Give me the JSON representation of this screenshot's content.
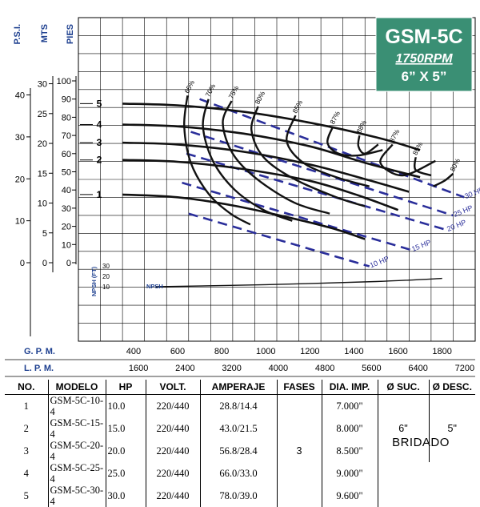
{
  "title_box": {
    "model": "GSM-5C",
    "rpm": "1750RPM",
    "size": "6” X 5”",
    "bg_color": "#3a8f74"
  },
  "chart_data": {
    "type": "line",
    "axes": {
      "psi": {
        "label": "P.S.I.",
        "ticks": [
          0,
          10,
          20,
          30,
          40
        ]
      },
      "mts": {
        "label": "MTS",
        "ticks": [
          0,
          5,
          10,
          15,
          20,
          25,
          30
        ]
      },
      "pies": {
        "label": "PIES",
        "ticks": [
          0,
          10,
          20,
          30,
          40,
          50,
          60,
          70,
          80,
          90,
          100
        ],
        "range": [
          0,
          100
        ]
      },
      "gpm": {
        "label": "G. P. M.",
        "ticks": [
          400,
          600,
          800,
          1000,
          1200,
          1400,
          1600,
          1800
        ],
        "range": [
          150,
          1950
        ]
      },
      "lpm": {
        "label": "L. P. M.",
        "ticks": [
          1600,
          2400,
          3200,
          4000,
          4800,
          5600,
          6400,
          7200
        ]
      }
    },
    "impeller_curves": [
      {
        "label": "5",
        "points": [
          [
            350,
            87.5
          ],
          [
            600,
            86.5
          ],
          [
            900,
            83
          ],
          [
            1200,
            77
          ],
          [
            1500,
            69
          ],
          [
            1700,
            62
          ]
        ]
      },
      {
        "label": "4",
        "points": [
          [
            350,
            76
          ],
          [
            600,
            75
          ],
          [
            900,
            71
          ],
          [
            1200,
            64
          ],
          [
            1450,
            55
          ],
          [
            1700,
            47
          ]
        ]
      },
      {
        "label": "3",
        "points": [
          [
            350,
            66
          ],
          [
            600,
            65
          ],
          [
            900,
            61
          ],
          [
            1200,
            54
          ],
          [
            1450,
            46
          ],
          [
            1650,
            39
          ]
        ]
      },
      {
        "label": "2",
        "points": [
          [
            350,
            56.5
          ],
          [
            600,
            55.5
          ],
          [
            900,
            51.5
          ],
          [
            1200,
            45
          ],
          [
            1420,
            37
          ],
          [
            1600,
            29
          ]
        ]
      },
      {
        "label": "1",
        "points": [
          [
            350,
            37.5
          ],
          [
            600,
            36
          ],
          [
            850,
            31.5
          ],
          [
            1100,
            25
          ],
          [
            1300,
            19
          ],
          [
            1450,
            13
          ]
        ]
      }
    ],
    "efficiency_curves": [
      {
        "label": "65%",
        "points": [
          [
            645,
            92
          ],
          [
            630,
            75
          ],
          [
            660,
            55
          ],
          [
            740,
            38
          ],
          [
            840,
            27
          ],
          [
            930,
            21
          ]
        ]
      },
      {
        "label": "70%",
        "points": [
          [
            740,
            90
          ],
          [
            715,
            75
          ],
          [
            760,
            56
          ],
          [
            860,
            40
          ],
          [
            990,
            29
          ],
          [
            1120,
            23
          ]
        ]
      },
      {
        "label": "75%",
        "points": [
          [
            845,
            89
          ],
          [
            805,
            77
          ],
          [
            850,
            60
          ],
          [
            960,
            46
          ],
          [
            1130,
            33
          ],
          [
            1290,
            27
          ]
        ]
      },
      {
        "label": "80%",
        "points": [
          [
            965,
            86
          ],
          [
            935,
            73
          ],
          [
            990,
            58
          ],
          [
            1130,
            46
          ],
          [
            1320,
            36
          ],
          [
            1450,
            31
          ]
        ]
      },
      {
        "label": "85%",
        "points": [
          [
            1135,
            81
          ],
          [
            1095,
            67
          ],
          [
            1170,
            55
          ],
          [
            1320,
            47
          ],
          [
            1470,
            42
          ]
        ]
      },
      {
        "label": "87%",
        "points": [
          [
            1305,
            75
          ],
          [
            1280,
            66
          ],
          [
            1330,
            60
          ],
          [
            1420,
            59
          ],
          [
            1530,
            62
          ]
        ]
      },
      {
        "label": "88%",
        "points": [
          [
            1425,
            70
          ],
          [
            1420,
            64
          ],
          [
            1450,
            60
          ],
          [
            1510,
            65
          ]
        ]
      },
      {
        "label": "87%",
        "points": [
          [
            1575,
            65
          ],
          [
            1520,
            55
          ],
          [
            1620,
            48
          ],
          [
            1770,
            56
          ]
        ]
      },
      {
        "label": "85%",
        "points": [
          [
            1680,
            58
          ],
          [
            1680,
            51
          ],
          [
            1750,
            48
          ]
        ]
      },
      {
        "label": "80%",
        "points": [
          [
            1850,
            49
          ],
          [
            1810,
            45
          ],
          [
            1760,
            42
          ]
        ]
      }
    ],
    "hp_lines": [
      {
        "label": "30 HP",
        "points": [
          [
            700,
            90
          ],
          [
            1900,
            36
          ]
        ]
      },
      {
        "label": "25 HP",
        "points": [
          [
            660,
            72
          ],
          [
            1850,
            26
          ]
        ]
      },
      {
        "label": "20 HP",
        "points": [
          [
            640,
            60
          ],
          [
            1820,
            18
          ]
        ]
      },
      {
        "label": "15 HP",
        "points": [
          [
            620,
            44
          ],
          [
            1660,
            7
          ]
        ]
      },
      {
        "label": "10 HP",
        "points": [
          [
            650,
            27
          ],
          [
            1470,
            -2
          ]
        ]
      }
    ],
    "npsh": {
      "label": "NPSH",
      "axis_label": "NPSH (FT)",
      "ticks": [
        10,
        20,
        30
      ],
      "points": [
        [
          500,
          10
        ],
        [
          1000,
          12
        ],
        [
          1500,
          15
        ],
        [
          1800,
          18
        ]
      ]
    },
    "colors": {
      "hp_lines": "#2a2e9a",
      "curves": "#111111",
      "axis_labels": "#1d3f8f"
    }
  },
  "table": {
    "headers": [
      "NO.",
      "MODELO",
      "HP",
      "VOLT.",
      "AMPERAJE",
      "FASES",
      "DIA. IMP.",
      "Ø SUC.",
      "Ø DESC."
    ],
    "rows": [
      [
        "1",
        "GSM-5C-10-4",
        "10.0",
        "220/440",
        "28.8/14.4",
        "7.000\""
      ],
      [
        "2",
        "GSM-5C-15-4",
        "15.0",
        "220/440",
        "43.0/21.5",
        "8.000\""
      ],
      [
        "3",
        "GSM-5C-20-4",
        "20.0",
        "220/440",
        "56.8/28.4",
        "8.500\""
      ],
      [
        "4",
        "GSM-5C-25-4",
        "25.0",
        "220/440",
        "66.0/33.0",
        "9.000\""
      ],
      [
        "5",
        "GSM-5C-30-4",
        "30.0",
        "220/440",
        "78.0/39.0",
        "9.600\""
      ]
    ],
    "fases": "3",
    "suc": "6\"",
    "desc": "5\"",
    "connection": "BRIDADO"
  }
}
